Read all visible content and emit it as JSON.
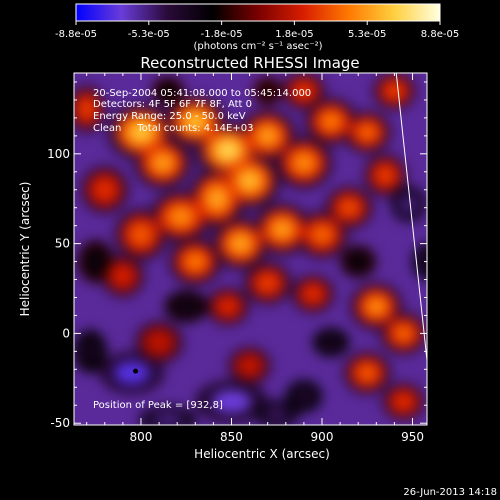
{
  "chart_data": {
    "type": "heatmap",
    "title": "Reconstructed RHESSI Image",
    "xlabel": "Heliocentric X (arcsec)",
    "ylabel": "Heliocentric Y (arcsec)",
    "xlim": [
      763,
      958
    ],
    "ylim": [
      -51,
      145
    ],
    "x_ticks": [
      800,
      850,
      900,
      950
    ],
    "y_ticks": [
      -50,
      0,
      50,
      100
    ],
    "colorbar": {
      "range": [
        -8.8e-05,
        8.8e-05
      ],
      "tick_labels": [
        "-8.8e-05",
        "-5.3e-05",
        "-1.8e-05",
        "1.8e-05",
        "5.3e-05",
        "8.8e-05"
      ],
      "unit_label": "(photons cm⁻² s⁻¹ asec⁻²)",
      "colormap": [
        "#0000ff",
        "#6a3cd8",
        "#2a0a3a",
        "#000000",
        "#7a0000",
        "#d81e00",
        "#ff7a00",
        "#ffd040",
        "#ffffe0"
      ]
    },
    "info_lines": [
      "20-Sep-2004 05:41:08.000 to 05:45:14.000",
      "Detectors: 4F 5F 6F 7F 8F, Att 0",
      "Energy Range: 25.0 - 50.0 keV",
      "Clean     Total counts: 4.14E+03"
    ],
    "peak_label": "Position of Peak = [932,8]",
    "peak_position": [
      932,
      8
    ],
    "marker_point": [
      797,
      -21
    ],
    "limb_line": [
      [
        941,
        145
      ],
      [
        958,
        -15
      ]
    ],
    "blobs": [
      [
        800,
        112,
        14,
        12,
        0.72
      ],
      [
        812,
        95,
        12,
        11,
        0.6
      ],
      [
        830,
        118,
        13,
        11,
        0.7
      ],
      [
        848,
        102,
        14,
        12,
        0.78
      ],
      [
        860,
        85,
        13,
        12,
        0.68
      ],
      [
        842,
        75,
        12,
        13,
        0.62
      ],
      [
        822,
        65,
        13,
        11,
        0.55
      ],
      [
        870,
        110,
        12,
        11,
        0.6
      ],
      [
        890,
        95,
        12,
        11,
        0.55
      ],
      [
        905,
        118,
        11,
        10,
        0.5
      ],
      [
        925,
        112,
        10,
        9,
        0.45
      ],
      [
        935,
        88,
        9,
        9,
        0.35
      ],
      [
        878,
        58,
        12,
        11,
        0.6
      ],
      [
        855,
        50,
        12,
        11,
        0.62
      ],
      [
        830,
        40,
        11,
        10,
        0.5
      ],
      [
        900,
        55,
        11,
        10,
        0.45
      ],
      [
        915,
        70,
        10,
        9,
        0.38
      ],
      [
        800,
        55,
        11,
        11,
        0.42
      ],
      [
        780,
        80,
        10,
        10,
        0.3
      ],
      [
        790,
        32,
        9,
        9,
        0.25
      ],
      [
        870,
        28,
        10,
        9,
        0.35
      ],
      [
        895,
        22,
        9,
        8,
        0.3
      ],
      [
        848,
        15,
        9,
        8,
        0.28
      ],
      [
        930,
        15,
        11,
        10,
        0.55
      ],
      [
        945,
        0,
        10,
        9,
        0.45
      ],
      [
        925,
        -22,
        10,
        9,
        0.42
      ],
      [
        945,
        -38,
        9,
        8,
        0.3
      ],
      [
        860,
        -18,
        9,
        8,
        0.2
      ],
      [
        810,
        -5,
        10,
        9,
        0.18
      ],
      [
        770,
        125,
        8,
        10,
        0.35
      ],
      [
        940,
        135,
        9,
        8,
        0.35
      ],
      [
        890,
        135,
        9,
        8,
        0.32
      ]
    ],
    "dips": [
      [
        795,
        -22,
        18,
        12,
        -0.8
      ],
      [
        850,
        -38,
        20,
        12,
        -0.75
      ],
      [
        815,
        -48,
        16,
        8,
        -0.6
      ],
      [
        875,
        -45,
        12,
        8,
        -0.55
      ],
      [
        948,
        72,
        10,
        10,
        -0.6
      ],
      [
        958,
        40,
        8,
        10,
        -0.45
      ],
      [
        905,
        -5,
        10,
        8,
        -0.4
      ],
      [
        890,
        -35,
        10,
        9,
        -0.45
      ],
      [
        825,
        15,
        12,
        9,
        -0.35
      ],
      [
        775,
        40,
        10,
        12,
        -0.3
      ],
      [
        772,
        -10,
        9,
        12,
        -0.4
      ],
      [
        920,
        40,
        10,
        9,
        -0.3
      ],
      [
        870,
        135,
        8,
        8,
        -0.2
      ],
      [
        815,
        135,
        9,
        8,
        -0.25
      ]
    ]
  },
  "timestamp": "26-Jun-2013 14:18"
}
